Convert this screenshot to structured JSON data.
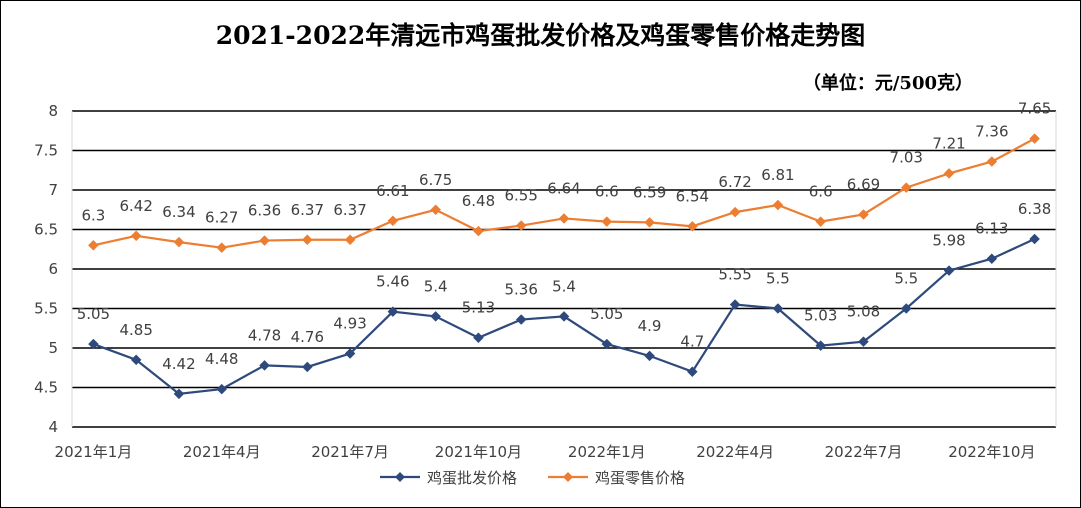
{
  "title": "2021-2022年清远市鸡蛋批发价格及鸡蛋零售价格走势图",
  "unit_label": "（单位：元/500克）",
  "chart_data": {
    "type": "line",
    "title": "2021-2022年清远市鸡蛋批发价格及鸡蛋零售价格走势图",
    "ylim": [
      4,
      8
    ],
    "yticks": [
      4,
      4.5,
      5,
      5.5,
      6,
      6.5,
      7,
      7.5,
      8
    ],
    "grid": true,
    "legend": "bottom",
    "x_tick_labels": [
      {
        "index": 0,
        "label": "2021年1月"
      },
      {
        "index": 3,
        "label": "2021年4月"
      },
      {
        "index": 6,
        "label": "2021年7月"
      },
      {
        "index": 9,
        "label": "2021年10月"
      },
      {
        "index": 12,
        "label": "2022年1月"
      },
      {
        "index": 15,
        "label": "2022年4月"
      },
      {
        "index": 18,
        "label": "2022年7月"
      },
      {
        "index": 21,
        "label": "2022年10月"
      }
    ],
    "series": [
      {
        "name": "鸡蛋批发价格",
        "color": "#2e4a7d",
        "marker": "diamond",
        "values": [
          5.05,
          4.85,
          4.42,
          4.48,
          4.78,
          4.76,
          4.93,
          5.46,
          5.4,
          5.13,
          5.36,
          5.4,
          5.05,
          4.9,
          4.7,
          5.55,
          5.5,
          5.03,
          5.08,
          5.5,
          5.98,
          6.13,
          6.38
        ]
      },
      {
        "name": "鸡蛋零售价格",
        "color": "#ed7d31",
        "marker": "diamond",
        "values": [
          6.3,
          6.42,
          6.34,
          6.27,
          6.36,
          6.37,
          6.37,
          6.61,
          6.75,
          6.48,
          6.55,
          6.64,
          6.6,
          6.59,
          6.54,
          6.72,
          6.81,
          6.6,
          6.69,
          7.03,
          7.21,
          7.36,
          7.65
        ]
      }
    ]
  }
}
